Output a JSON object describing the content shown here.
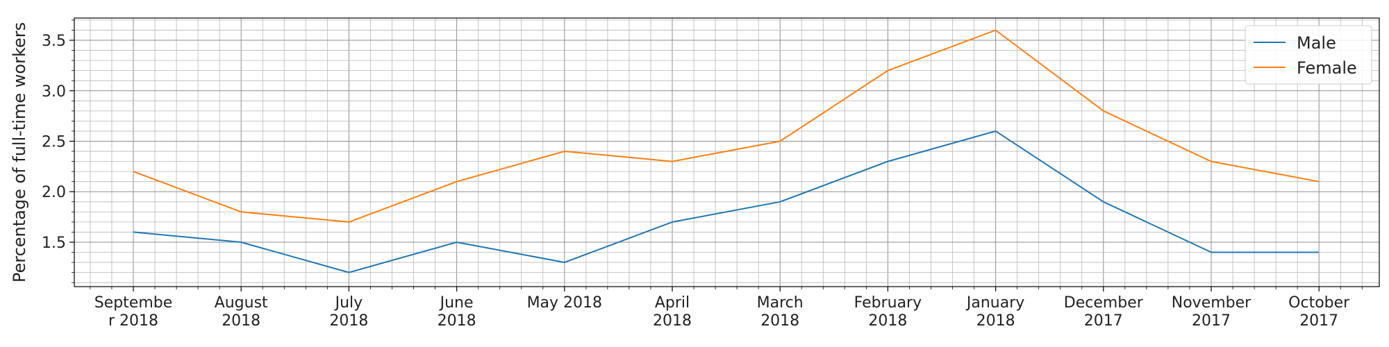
{
  "chart_data": {
    "type": "line",
    "title": "",
    "xlabel": "",
    "ylabel": "Percentage of full-time workers",
    "categories": [
      [
        "Septembe",
        "r 2018"
      ],
      [
        "August",
        "2018"
      ],
      [
        "July",
        "2018"
      ],
      [
        "June",
        "2018"
      ],
      [
        "May 2018"
      ],
      [
        "April",
        "2018"
      ],
      [
        "March",
        "2018"
      ],
      [
        "February",
        "2018"
      ],
      [
        "January",
        "2018"
      ],
      [
        "December",
        "2017"
      ],
      [
        "November",
        "2017"
      ],
      [
        "October",
        "2017"
      ]
    ],
    "series": [
      {
        "name": "Male",
        "color": "#1f77b4",
        "values": [
          1.6,
          1.5,
          1.2,
          1.5,
          1.3,
          1.7,
          1.9,
          2.3,
          2.6,
          1.9,
          1.4,
          1.4
        ]
      },
      {
        "name": "Female",
        "color": "#ff7f0e",
        "values": [
          2.2,
          1.8,
          1.7,
          2.1,
          2.4,
          2.3,
          2.5,
          3.2,
          3.6,
          2.8,
          2.3,
          2.1
        ]
      }
    ],
    "ylim": [
      1.06,
      3.72
    ],
    "yticks": [
      "1.5",
      "2.0",
      "2.5",
      "3.0",
      "3.5"
    ],
    "grid": "major and minor",
    "legend_position": "upper-right"
  }
}
